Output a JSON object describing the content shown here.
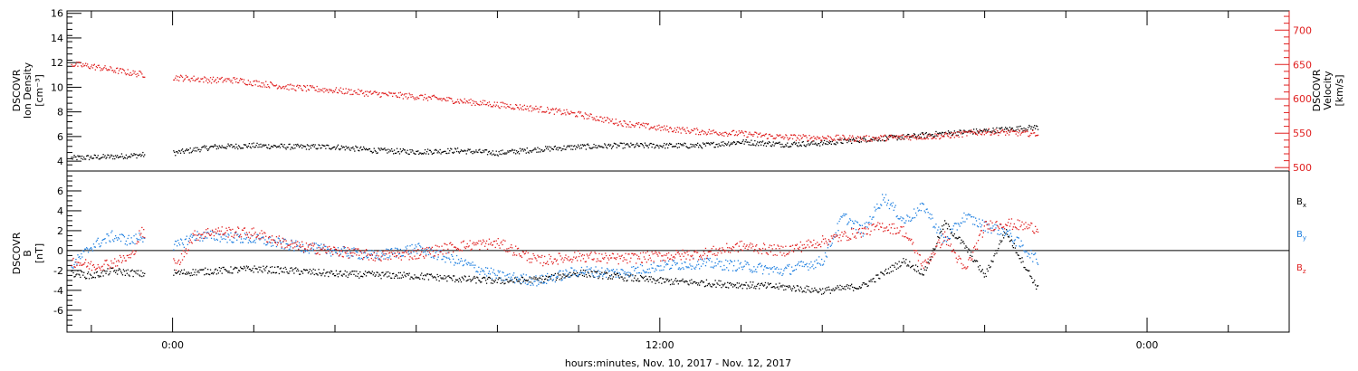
{
  "chart_data": [
    {
      "type": "scatter",
      "panel": "top",
      "ylabel_left": [
        "DSCOVR",
        "Ion Density",
        "[cm⁻³]"
      ],
      "ylabel_right": [
        "DSCOVR",
        "Velocity",
        "[km/s]"
      ],
      "ylim_left": [
        3.2,
        16.2
      ],
      "yticks_left": [
        4,
        6,
        8,
        10,
        12,
        14,
        16
      ],
      "ylim_right": [
        495,
        728
      ],
      "yticks_right": [
        500,
        550,
        600,
        650,
        700
      ],
      "series": [
        {
          "color": "#000000",
          "axis": "left",
          "x_hours": [
            -2.5,
            -1.5,
            0,
            1,
            2,
            3,
            4,
            5,
            6,
            7,
            8,
            9,
            10,
            11,
            12,
            13,
            14,
            15,
            16,
            17,
            18,
            19,
            20,
            21.3
          ],
          "values": [
            4.3,
            4.4,
            4.7,
            5.2,
            5.3,
            5.2,
            5.2,
            4.9,
            4.8,
            4.9,
            4.7,
            5.0,
            5.2,
            5.3,
            5.3,
            5.3,
            5.6,
            5.4,
            5.5,
            5.8,
            6.0,
            6.3,
            6.5,
            6.8
          ]
        },
        {
          "color": "#e02020",
          "axis": "right",
          "x_hours": [
            -2.5,
            -2.0,
            -1.5,
            -1.0,
            0,
            1.0,
            1.5,
            2,
            3,
            4,
            5,
            6,
            7,
            8,
            9,
            10,
            11,
            12,
            13,
            14,
            15,
            16,
            17,
            18,
            19,
            20,
            21.3
          ],
          "values": [
            651,
            648,
            643,
            638,
            632,
            628,
            628,
            624,
            617,
            613,
            608,
            604,
            598,
            592,
            586,
            578,
            566,
            558,
            553,
            550,
            545,
            544,
            543,
            545,
            547,
            553,
            550
          ]
        }
      ]
    },
    {
      "type": "scatter",
      "panel": "bottom",
      "ylabel": [
        "DSCOVR",
        "B",
        "[nT]"
      ],
      "ylim": [
        -8.2,
        8
      ],
      "yticks": [
        -6,
        -4,
        -2,
        0,
        2,
        4,
        6
      ],
      "zero_line": true,
      "xlabel": "hours:minutes, Nov. 10, 2017 - Nov. 12, 2017",
      "xticks": [
        {
          "x_hours": 0,
          "label": "0:00"
        },
        {
          "x_hours": 12,
          "label": "12:00"
        },
        {
          "x_hours": 24,
          "label": "0:00"
        }
      ],
      "xlim_hours": [
        -2.6,
        27.5
      ],
      "data_end_hours": 21.3,
      "gaps_hours": [
        [
          -0.7,
          0.0
        ]
      ],
      "series": [
        {
          "name": "Bx",
          "color": "#000000",
          "x_hours": [
            -2.5,
            -2.0,
            -1.5,
            -1.0,
            -0.8,
            0.1,
            1,
            2,
            3,
            4,
            5,
            6,
            7,
            8,
            9,
            10,
            11,
            12,
            13,
            14,
            15,
            16,
            17,
            18,
            18.5,
            19,
            19.5,
            20,
            20.5,
            21.3
          ],
          "values": [
            -2.2,
            -2.5,
            -2.0,
            -2.2,
            -2.3,
            -2.2,
            -2.0,
            -1.8,
            -2.0,
            -2.3,
            -2.4,
            -2.5,
            -2.8,
            -3.0,
            -2.9,
            -2.2,
            -2.6,
            -3.0,
            -3.2,
            -3.4,
            -3.6,
            -4.0,
            -3.5,
            -1.0,
            -2.2,
            2.8,
            0.5,
            -2.5,
            2.0,
            -3.8
          ]
        },
        {
          "name": "By",
          "color": "#2080e0",
          "x_hours": [
            -2.5,
            -2.0,
            -1.5,
            -1.0,
            -0.8,
            0.1,
            0.5,
            1,
            2,
            3,
            4,
            5,
            6,
            7,
            8,
            9,
            10,
            11,
            12,
            13,
            14,
            15,
            16,
            16.5,
            17,
            17.5,
            18,
            18.5,
            19,
            19.5,
            20,
            20.5,
            21.3
          ],
          "values": [
            -1.5,
            0.5,
            1.5,
            1.0,
            1.5,
            0.5,
            1.5,
            1.5,
            1.2,
            0.5,
            0,
            -0.5,
            0.3,
            -1.0,
            -2.5,
            -3.0,
            -2.0,
            -2.2,
            -1.5,
            -1.2,
            -1.5,
            -2.0,
            -1.0,
            3.5,
            2.0,
            5.5,
            3.0,
            4.5,
            1.0,
            3.5,
            2.5,
            2.0,
            -1.0
          ]
        },
        {
          "name": "Bz",
          "color": "#e02020",
          "x_hours": [
            -2.5,
            -2.0,
            -1.5,
            -1.0,
            -0.8,
            0.1,
            0.5,
            1,
            2,
            3,
            4,
            5,
            6,
            7,
            8,
            9,
            10,
            11,
            12,
            13,
            14,
            15,
            16,
            16.5,
            17,
            17.5,
            18,
            18.5,
            19,
            19.5,
            20,
            20.5,
            21.3
          ],
          "values": [
            -1.0,
            -1.5,
            -1.2,
            -0.5,
            2.0,
            -1.5,
            1.5,
            2.0,
            1.8,
            0.5,
            0,
            -0.5,
            -0.3,
            0.5,
            0.8,
            -1.0,
            -0.5,
            -0.8,
            -0.5,
            -0.3,
            0.5,
            0.0,
            1.0,
            1.5,
            2.0,
            2.5,
            2.0,
            -1.5,
            1.5,
            -2.0,
            2.5,
            2.8,
            2.3
          ]
        }
      ],
      "legend_placement": "right",
      "legend": [
        {
          "label": "B",
          "sub": "x",
          "color": "#000000"
        },
        {
          "label": "B",
          "sub": "y",
          "color": "#2080e0"
        },
        {
          "label": "B",
          "sub": "z",
          "color": "#e02020"
        }
      ]
    }
  ]
}
